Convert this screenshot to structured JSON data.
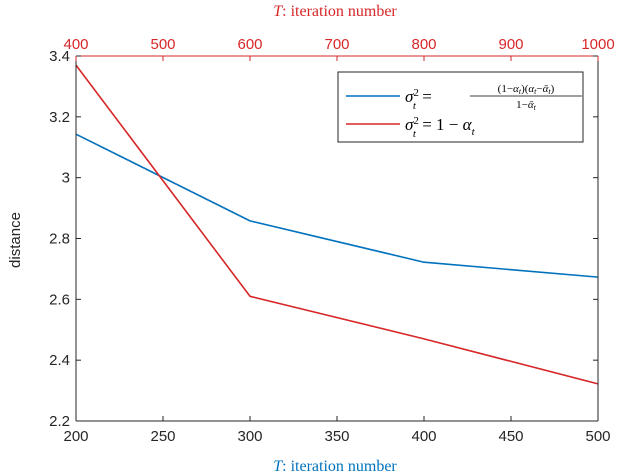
{
  "chart_data": {
    "type": "line",
    "xlabel_bottom": "T: iteration number",
    "xlabel_top": "T: iteration number",
    "ylabel": "distance",
    "ylim": [
      2.2,
      3.4
    ],
    "yticks": [
      2.2,
      2.4,
      2.6,
      2.8,
      3,
      3.2,
      3.4
    ],
    "ytick_labels": [
      "2.2",
      "2.4",
      "2.6",
      "2.8",
      "3",
      "3.2",
      "3.4"
    ],
    "bottom_axis": {
      "xlim": [
        200,
        500
      ],
      "ticks": [
        200,
        250,
        300,
        350,
        400,
        450,
        500
      ],
      "tick_labels": [
        "200",
        "250",
        "300",
        "350",
        "400",
        "450",
        "500"
      ],
      "color": "#0072BD"
    },
    "top_axis": {
      "xlim": [
        400,
        1000
      ],
      "ticks": [
        400,
        500,
        600,
        700,
        800,
        900,
        1000
      ],
      "tick_labels": [
        "400",
        "500",
        "600",
        "700",
        "800",
        "900",
        "1000"
      ],
      "color": "#D62728"
    },
    "legend_position": "top-right",
    "series": [
      {
        "name": "σ_t² = (1−α_t)(α_t−ᾱ_t) / (1−ᾱ_t)",
        "axis": "bottom",
        "color": "#0072BD",
        "x": [
          200,
          300,
          400,
          500
        ],
        "y": [
          3.143,
          2.858,
          2.722,
          2.673
        ]
      },
      {
        "name": "σ_t² = 1 − α_t",
        "axis": "top",
        "color": "#D62728",
        "x": [
          400,
          600,
          800,
          1000
        ],
        "y": [
          3.37,
          2.61,
          2.47,
          2.322
        ]
      }
    ]
  }
}
